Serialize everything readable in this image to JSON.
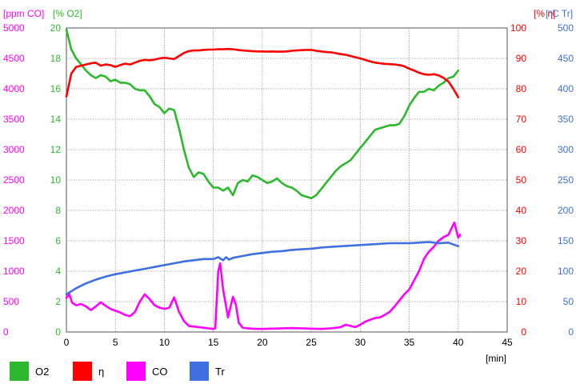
{
  "chart_data": {
    "type": "line",
    "x_unit": "[min]",
    "x_ticks": [
      "0",
      "5",
      "10",
      "15",
      "20",
      "25",
      "30",
      "35",
      "40",
      "45"
    ],
    "xlim": [
      0,
      45
    ],
    "grid": true,
    "legend_placement": "bottom",
    "axes": [
      {
        "id": "co",
        "unit": "[ppm CO]",
        "color": "#ff00ff",
        "side": "left",
        "min": 0,
        "max": 5000,
        "ticks": [
          "0",
          "500",
          "1000",
          "1500",
          "2000",
          "2500",
          "3000",
          "3500",
          "4000",
          "4500",
          "5000"
        ]
      },
      {
        "id": "o2",
        "unit": "[% O2]",
        "color": "#2db82d",
        "side": "left",
        "min": 0,
        "max": 20,
        "ticks": [
          "0",
          "2",
          "4",
          "6",
          "8",
          "10",
          "12",
          "14",
          "16",
          "18",
          "20"
        ]
      },
      {
        "id": "eta",
        "unit": "[% η]",
        "color": "#ff0000",
        "side": "right",
        "min": 0,
        "max": 100,
        "ticks": [
          "0",
          "10",
          "20",
          "30",
          "40",
          "50",
          "60",
          "70",
          "80",
          "90",
          "100"
        ]
      },
      {
        "id": "tr",
        "unit": "[°C Tr]",
        "color": "#3f6fe0",
        "side": "right",
        "min": 0,
        "max": 500,
        "ticks": [
          "0",
          "50",
          "100",
          "150",
          "200",
          "250",
          "300",
          "350",
          "400",
          "450",
          "500"
        ]
      }
    ],
    "series": [
      {
        "name": "O2",
        "axis": "o2",
        "color": "#2db82d",
        "x": [
          0,
          0.5,
          1,
          1.5,
          2,
          2.5,
          3,
          3.5,
          4,
          4.5,
          5,
          5.5,
          6,
          6.5,
          7,
          7.5,
          8,
          8.5,
          9,
          9.5,
          10,
          10.5,
          11,
          11.5,
          12,
          12.5,
          13,
          13.5,
          14,
          14.5,
          15,
          15.5,
          16,
          16.5,
          17,
          17.5,
          18,
          18.5,
          19,
          19.5,
          20,
          20.5,
          21,
          21.5,
          22,
          22.5,
          23,
          23.5,
          24,
          24.5,
          25,
          25.5,
          26,
          26.5,
          27,
          27.5,
          28,
          28.5,
          29,
          29.5,
          30,
          30.5,
          31,
          31.5,
          32,
          32.5,
          33,
          33.5,
          34,
          34.5,
          35,
          35.5,
          36,
          36.5,
          37,
          37.5,
          38,
          38.5,
          39,
          39.5,
          40
        ],
        "values": [
          19.9,
          18.6,
          18.0,
          17.6,
          17.2,
          16.9,
          16.7,
          16.9,
          16.8,
          16.5,
          16.6,
          16.4,
          16.4,
          16.3,
          16.0,
          15.9,
          15.9,
          15.5,
          15.0,
          14.8,
          14.4,
          14.7,
          14.6,
          13.4,
          12.0,
          10.8,
          10.2,
          10.5,
          10.4,
          9.9,
          9.5,
          9.5,
          9.3,
          9.5,
          9.0,
          9.8,
          10.0,
          9.9,
          10.3,
          10.2,
          10.0,
          9.8,
          9.9,
          10.1,
          9.8,
          9.6,
          9.5,
          9.3,
          9.0,
          8.9,
          8.8,
          9.0,
          9.4,
          9.8,
          10.2,
          10.6,
          10.9,
          11.1,
          11.3,
          11.7,
          12.1,
          12.5,
          12.9,
          13.3,
          13.4,
          13.5,
          13.6,
          13.6,
          13.7,
          14.2,
          14.9,
          15.4,
          15.8,
          15.8,
          16.0,
          15.9,
          16.2,
          16.4,
          16.7,
          16.8,
          17.2
        ]
      },
      {
        "name": "η",
        "axis": "eta",
        "color": "#ff0000",
        "x": [
          0,
          0.5,
          1,
          1.5,
          2,
          2.5,
          3,
          3.5,
          4,
          4.5,
          5,
          5.5,
          6,
          6.5,
          7,
          7.5,
          8,
          8.5,
          9,
          9.5,
          10,
          10.5,
          11,
          11.5,
          12,
          12.5,
          13,
          13.5,
          14,
          14.5,
          15,
          15.5,
          16,
          16.5,
          17,
          17.5,
          18,
          18.5,
          19,
          19.5,
          20,
          20.5,
          21,
          21.5,
          22,
          22.5,
          23,
          23.5,
          24,
          24.5,
          25,
          25.5,
          26,
          26.5,
          27,
          27.5,
          28,
          28.5,
          29,
          29.5,
          30,
          30.5,
          31,
          31.5,
          32,
          32.5,
          33,
          33.5,
          34,
          34.5,
          35,
          35.5,
          36,
          36.5,
          37,
          37.5,
          38,
          38.5,
          39,
          39.5,
          40
        ],
        "values": [
          77.5,
          85.0,
          87.2,
          87.6,
          88.0,
          88.4,
          88.6,
          87.6,
          88.0,
          87.8,
          87.2,
          87.8,
          88.3,
          88.0,
          88.6,
          89.2,
          89.5,
          89.4,
          89.6,
          90.0,
          90.2,
          90.0,
          89.8,
          90.8,
          91.8,
          92.4,
          92.6,
          92.6,
          92.8,
          92.9,
          92.9,
          93.0,
          93.0,
          93.1,
          93.0,
          92.8,
          92.6,
          92.5,
          92.4,
          92.3,
          92.3,
          92.2,
          92.3,
          92.2,
          92.2,
          92.3,
          92.5,
          92.6,
          92.7,
          92.8,
          92.8,
          92.5,
          92.3,
          92.1,
          92.0,
          91.7,
          91.4,
          91.2,
          90.8,
          90.4,
          90.0,
          89.5,
          89.0,
          88.6,
          88.4,
          88.2,
          88.1,
          88.0,
          87.8,
          87.4,
          86.6,
          86.0,
          85.3,
          84.8,
          84.6,
          84.8,
          84.4,
          83.6,
          82.4,
          80.0,
          77.2
        ]
      },
      {
        "name": "CO",
        "axis": "co",
        "color": "#ff00ff",
        "x": [
          0,
          0.3,
          0.6,
          1,
          1.5,
          2,
          2.5,
          3,
          3.5,
          4,
          4.5,
          5,
          5.5,
          6,
          6.5,
          7,
          7.5,
          8,
          8.5,
          9,
          9.5,
          10,
          10.5,
          11,
          11.5,
          12,
          12.5,
          13,
          13.5,
          14,
          14.5,
          15,
          15.2,
          15.5,
          15.7,
          16,
          16.5,
          17,
          17.3,
          17.6,
          18,
          18.5,
          19,
          19.5,
          20,
          21,
          22,
          23,
          24,
          25,
          26,
          27,
          28,
          28.5,
          29,
          29.5,
          30,
          30.5,
          31,
          31.5,
          32,
          32.5,
          33,
          33.5,
          34,
          34.5,
          35,
          35.5,
          36,
          36.5,
          37,
          37.5,
          38,
          38.5,
          39,
          39.3,
          39.6,
          40,
          40.2
        ],
        "values": [
          560,
          620,
          480,
          440,
          460,
          420,
          360,
          420,
          490,
          430,
          380,
          350,
          320,
          280,
          260,
          330,
          500,
          620,
          540,
          440,
          400,
          380,
          400,
          570,
          330,
          180,
          100,
          90,
          80,
          70,
          60,
          50,
          60,
          1000,
          1130,
          700,
          240,
          580,
          450,
          150,
          70,
          60,
          55,
          50,
          50,
          55,
          60,
          65,
          60,
          55,
          50,
          60,
          80,
          120,
          100,
          80,
          120,
          170,
          200,
          230,
          240,
          280,
          330,
          420,
          520,
          620,
          700,
          850,
          1000,
          1200,
          1320,
          1400,
          1500,
          1560,
          1600,
          1700,
          1800,
          1550,
          1600
        ]
      },
      {
        "name": "Tr",
        "axis": "tr",
        "color": "#3f6fe0",
        "x": [
          0,
          1,
          2,
          3,
          4,
          5,
          6,
          7,
          8,
          9,
          10,
          11,
          12,
          13,
          14,
          15,
          15.5,
          16,
          16.3,
          16.6,
          17,
          18,
          19,
          20,
          21,
          22,
          23,
          24,
          25,
          26,
          27,
          28,
          29,
          30,
          31,
          32,
          33,
          34,
          35,
          36,
          37,
          38,
          39,
          40
        ],
        "values": [
          62,
          72,
          80,
          86,
          91,
          95,
          98,
          101,
          104,
          107,
          110,
          113,
          116,
          118,
          120,
          120,
          123,
          118,
          123,
          119,
          122,
          125,
          128,
          130,
          132,
          133,
          135,
          136,
          137,
          139,
          140,
          141,
          142,
          143,
          144,
          145,
          146,
          146,
          146,
          147,
          148,
          146,
          147,
          141
        ]
      }
    ]
  },
  "legend": [
    {
      "label": "O2",
      "color": "#2db82d"
    },
    {
      "label": "η",
      "color": "#ff0000"
    },
    {
      "label": "CO",
      "color": "#ff00ff"
    },
    {
      "label": "Tr",
      "color": "#3f6fe0"
    }
  ]
}
